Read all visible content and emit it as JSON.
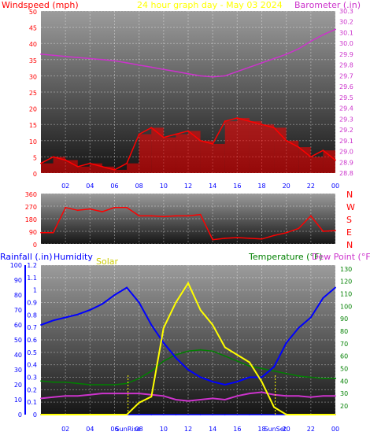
{
  "header": {
    "left_title": "Windspeed (mph)",
    "center_title": "24 hour graph day - May 03 2024",
    "right_title": "Barometer (.in)"
  },
  "lower_header": {
    "rainfall": "Rainfall (.in)",
    "humidity": "Humidity",
    "solar": "Solar",
    "temperature": "Temperature (°F)",
    "dewpoint": "Dew Point (°F)"
  },
  "time_ticks": [
    "02",
    "04",
    "06",
    "08",
    "10",
    "12",
    "14",
    "16",
    "18",
    "20",
    "22",
    "00"
  ],
  "sun_labels": {
    "sunrise": "SunRise",
    "sunset": "SunSet"
  },
  "colors": {
    "panel_top": "#9a9a9a",
    "panel_bottom": "#1a1a1a",
    "wind": "#ff0000",
    "gust_avg": "#0000ff",
    "wind_low": "#008000",
    "barometer": "#cc33cc",
    "humidity": "#0000ff",
    "solar": "#ffff00",
    "temperature": "#008000",
    "dewpoint": "#cc33cc",
    "title_wind": "#ff0000",
    "title_date": "#ffff00",
    "title_baro": "#cc33cc",
    "title_temp": "#008000",
    "axis_rain": "#0000ff",
    "axis_baro": "#cc33cc"
  },
  "chart_data": [
    {
      "type": "line",
      "title": "24 hour graph day - May 03 2024",
      "x": [
        "00",
        "01",
        "02",
        "03",
        "04",
        "05",
        "06",
        "07",
        "08",
        "09",
        "10",
        "11",
        "12",
        "13",
        "14",
        "15",
        "16",
        "17",
        "18",
        "19",
        "20",
        "21",
        "22",
        "23",
        "00"
      ],
      "series": [
        {
          "name": "Windspeed (mph)",
          "axis": "left",
          "values": [
            3,
            5,
            4,
            2,
            3,
            2,
            1,
            3,
            12,
            14,
            11,
            12,
            13,
            10,
            9,
            16,
            17,
            16,
            15,
            14,
            10,
            8,
            5,
            7,
            4
          ]
        },
        {
          "name": "Barometer (.in)",
          "axis": "right",
          "values": [
            29.9,
            29.89,
            29.88,
            29.87,
            29.86,
            29.85,
            29.84,
            29.82,
            29.8,
            29.78,
            29.76,
            29.74,
            29.72,
            29.7,
            29.69,
            29.7,
            29.74,
            29.78,
            29.82,
            29.86,
            29.9,
            29.95,
            30.02,
            30.08,
            30.13
          ]
        }
      ],
      "y_left": {
        "label": "Windspeed (mph)",
        "ticks": [
          0,
          5,
          10,
          15,
          20,
          25,
          30,
          35,
          40,
          45,
          50
        ],
        "range": [
          0,
          50
        ]
      },
      "y_right": {
        "label": "Barometer (.in)",
        "ticks": [
          28.8,
          28.9,
          29,
          29.1,
          29.2,
          29.3,
          29.4,
          29.5,
          29.6,
          29.7,
          29.8,
          29.9,
          30,
          30.1,
          30.2,
          30.3
        ],
        "range": [
          28.8,
          30.3
        ]
      }
    },
    {
      "type": "line",
      "x": [
        "00",
        "01",
        "02",
        "03",
        "04",
        "05",
        "06",
        "07",
        "08",
        "09",
        "10",
        "11",
        "12",
        "13",
        "14",
        "15",
        "16",
        "17",
        "18",
        "19",
        "20",
        "21",
        "22",
        "23",
        "00"
      ],
      "series": [
        {
          "name": "Wind direction",
          "values": [
            80,
            80,
            260,
            240,
            250,
            230,
            260,
            260,
            200,
            200,
            195,
            200,
            200,
            210,
            30,
            40,
            45,
            40,
            35,
            60,
            80,
            110,
            200,
            90,
            95
          ]
        }
      ],
      "y_left": {
        "ticks": [
          0,
          90,
          180,
          270,
          360
        ],
        "range": [
          0,
          360
        ]
      },
      "y_right_labels": [
        "N",
        "W",
        "S",
        "E",
        "N"
      ]
    },
    {
      "type": "line",
      "x": [
        "00",
        "01",
        "02",
        "03",
        "04",
        "05",
        "06",
        "07",
        "08",
        "09",
        "10",
        "11",
        "12",
        "13",
        "14",
        "15",
        "16",
        "17",
        "18",
        "19",
        "20",
        "21",
        "22",
        "23",
        "00"
      ],
      "series": [
        {
          "name": "Humidity",
          "axis": "left_pct",
          "values": [
            60,
            63,
            65,
            67,
            70,
            74,
            80,
            85,
            75,
            60,
            48,
            38,
            30,
            25,
            22,
            20,
            22,
            25,
            25,
            32,
            48,
            58,
            65,
            78,
            85
          ]
        },
        {
          "name": "Temperature (°F)",
          "axis": "right",
          "values": [
            40,
            39,
            39,
            38,
            37,
            37,
            37,
            38,
            42,
            48,
            56,
            61,
            64,
            65,
            64,
            60,
            56,
            52,
            50,
            48,
            46,
            44,
            43,
            42,
            42
          ]
        },
        {
          "name": "Dew Point (°F)",
          "axis": "right",
          "values": [
            26,
            27,
            28,
            28,
            29,
            30,
            30,
            30,
            30,
            29,
            28,
            25,
            24,
            25,
            26,
            25,
            28,
            30,
            31,
            29,
            28,
            28,
            27,
            28,
            28
          ]
        },
        {
          "name": "Solar",
          "axis": "solar",
          "values": [
            0,
            0,
            0,
            0,
            0,
            0,
            0,
            0,
            8,
            12,
            58,
            75,
            88,
            70,
            60,
            45,
            40,
            35,
            22,
            5,
            0,
            0,
            0,
            0,
            0
          ]
        },
        {
          "name": "Rainfall (.in)",
          "axis": "rain",
          "values": [
            0,
            0,
            0,
            0,
            0,
            0,
            0,
            0,
            0,
            0,
            0,
            0,
            0,
            0,
            0,
            0,
            0,
            0,
            0,
            0,
            0,
            0,
            0,
            0,
            0
          ]
        }
      ],
      "y_left_pct": {
        "ticks": [
          0,
          10,
          20,
          30,
          40,
          50,
          60,
          70,
          80,
          90,
          100
        ],
        "range": [
          0,
          100
        ]
      },
      "y_rain": {
        "ticks": [
          0,
          0.1,
          0.2,
          0.3,
          0.4,
          0.5,
          0.6,
          0.7,
          0.8,
          0.9,
          1,
          1.1,
          1.2
        ],
        "range": [
          0,
          1.2
        ]
      },
      "y_right": {
        "ticks": [
          20,
          30,
          40,
          50,
          60,
          70,
          80,
          90,
          100,
          110,
          120,
          130
        ],
        "range": [
          13,
          133
        ]
      },
      "markers": {
        "sunrise": "SunRise",
        "sunset": "SunSet"
      }
    }
  ]
}
